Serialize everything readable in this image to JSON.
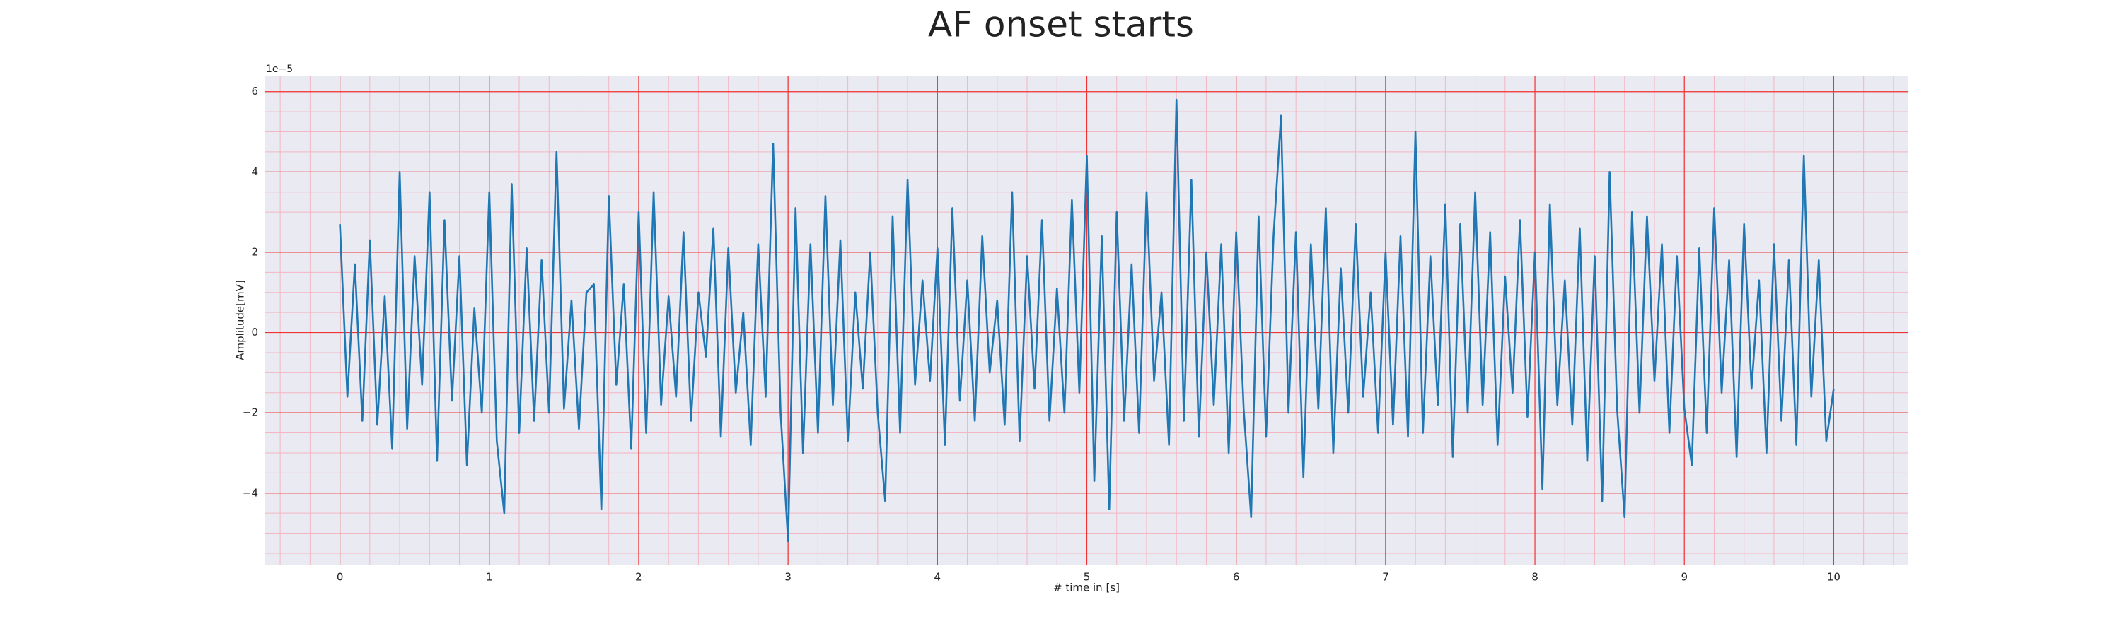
{
  "chart_data": {
    "type": "line",
    "title": "AF onset starts",
    "xlabel": "# time in [s]",
    "ylabel": "Amplitude[mV]",
    "y_offset_label": "1e−5",
    "xlim": [
      -0.5,
      10.5
    ],
    "ylim": [
      -5.8,
      6.4
    ],
    "xticks": [
      0,
      1,
      2,
      3,
      4,
      5,
      6,
      7,
      8,
      9,
      10
    ],
    "yticks": [
      {
        "value": -4,
        "label": "−4"
      },
      {
        "value": -2,
        "label": "−2"
      },
      0,
      2,
      4,
      6
    ],
    "grid": true,
    "minor_grid": true,
    "x": [
      0,
      0.05,
      0.1,
      0.15,
      0.2,
      0.25,
      0.3,
      0.35,
      0.4,
      0.45,
      0.5,
      0.55,
      0.6,
      0.65,
      0.7,
      0.75,
      0.8,
      0.85,
      0.9,
      0.95,
      1,
      1.05,
      1.1,
      1.15,
      1.2,
      1.25,
      1.3,
      1.35,
      1.4,
      1.45,
      1.5,
      1.55,
      1.6,
      1.65,
      1.7,
      1.75,
      1.8,
      1.85,
      1.9,
      1.95,
      2,
      2.05,
      2.1,
      2.15,
      2.2,
      2.25,
      2.3,
      2.35,
      2.4,
      2.45,
      2.5,
      2.55,
      2.6,
      2.65,
      2.7,
      2.75,
      2.8,
      2.85,
      2.9,
      2.95,
      3,
      3.05,
      3.1,
      3.15,
      3.2,
      3.25,
      3.3,
      3.35,
      3.4,
      3.45,
      3.5,
      3.55,
      3.6,
      3.65,
      3.7,
      3.75,
      3.8,
      3.85,
      3.9,
      3.95,
      4,
      4.05,
      4.1,
      4.15,
      4.2,
      4.25,
      4.3,
      4.35,
      4.4,
      4.45,
      4.5,
      4.55,
      4.6,
      4.65,
      4.7,
      4.75,
      4.8,
      4.85,
      4.9,
      4.95,
      5,
      5.05,
      5.1,
      5.15,
      5.2,
      5.25,
      5.3,
      5.35,
      5.4,
      5.45,
      5.5,
      5.55,
      5.6,
      5.65,
      5.7,
      5.75,
      5.8,
      5.85,
      5.9,
      5.95,
      6,
      6.05,
      6.1,
      6.15,
      6.2,
      6.25,
      6.3,
      6.35,
      6.4,
      6.45,
      6.5,
      6.55,
      6.6,
      6.65,
      6.7,
      6.75,
      6.8,
      6.85,
      6.9,
      6.95,
      7,
      7.05,
      7.1,
      7.15,
      7.2,
      7.25,
      7.3,
      7.35,
      7.4,
      7.45,
      7.5,
      7.55,
      7.6,
      7.65,
      7.7,
      7.75,
      7.8,
      7.85,
      7.9,
      7.95,
      8,
      8.05,
      8.1,
      8.15,
      8.2,
      8.25,
      8.3,
      8.35,
      8.4,
      8.45,
      8.5,
      8.55,
      8.6,
      8.65,
      8.7,
      8.75,
      8.8,
      8.85,
      8.9,
      8.95,
      9,
      9.05,
      9.1,
      9.15,
      9.2,
      9.25,
      9.3,
      9.35,
      9.4,
      9.45,
      9.5,
      9.55,
      9.6,
      9.65,
      9.7,
      9.75,
      9.8,
      9.85,
      9.9,
      9.95,
      10
    ],
    "series": [
      {
        "color": "#1f77b4",
        "values": [
          2.7,
          -1.6,
          1.7,
          -2.2,
          2.3,
          -2.3,
          0.9,
          -2.9,
          4.0,
          -2.4,
          1.9,
          -1.3,
          3.5,
          -3.2,
          2.8,
          -1.7,
          1.9,
          -3.3,
          0.6,
          -2.0,
          3.5,
          -2.7,
          -4.5,
          3.7,
          -2.5,
          2.1,
          -2.2,
          1.8,
          -2.0,
          4.5,
          -1.9,
          0.8,
          -2.4,
          1.0,
          1.2,
          -4.4,
          3.4,
          -1.3,
          1.2,
          -2.9,
          3.0,
          -2.5,
          3.5,
          -1.8,
          0.9,
          -1.6,
          2.5,
          -2.2,
          1.0,
          -0.6,
          2.6,
          -2.6,
          2.1,
          -1.5,
          0.5,
          -2.8,
          2.2,
          -1.6,
          4.7,
          -2.0,
          -5.2,
          3.1,
          -3.0,
          2.2,
          -2.5,
          3.4,
          -1.8,
          2.3,
          -2.7,
          1.0,
          -1.4,
          2.0,
          -2.0,
          -4.2,
          2.9,
          -2.5,
          3.8,
          -1.3,
          1.3,
          -1.2,
          2.1,
          -2.8,
          3.1,
          -1.7,
          1.3,
          -2.2,
          2.4,
          -1.0,
          0.8,
          -2.3,
          3.5,
          -2.7,
          1.9,
          -1.4,
          2.8,
          -2.2,
          1.1,
          -2.0,
          3.3,
          -1.5,
          4.4,
          -3.7,
          2.4,
          -4.4,
          3.0,
          -2.2,
          1.7,
          -2.5,
          3.5,
          -1.2,
          1.0,
          -2.8,
          5.8,
          -2.2,
          3.8,
          -2.6,
          2.0,
          -1.8,
          2.2,
          -3.0,
          2.5,
          -1.9,
          -4.6,
          2.9,
          -2.6,
          2.4,
          5.4,
          -2.0,
          2.5,
          -3.6,
          2.2,
          -1.9,
          3.1,
          -3.0,
          1.6,
          -2.0,
          2.7,
          -1.6,
          1.0,
          -2.5,
          2.0,
          -2.3,
          2.4,
          -2.6,
          5.0,
          -2.5,
          1.9,
          -1.8,
          3.2,
          -3.1,
          2.7,
          -2.0,
          3.5,
          -1.8,
          2.5,
          -2.8,
          1.4,
          -1.5,
          2.8,
          -2.1,
          2.0,
          -3.9,
          3.2,
          -1.8,
          1.3,
          -2.3,
          2.6,
          -3.2,
          1.9,
          -4.2,
          4.0,
          -1.9,
          -4.6,
          3.0,
          -2.0,
          2.9,
          -1.2,
          2.2,
          -2.5,
          1.9,
          -1.9,
          -3.3,
          2.1,
          -2.5,
          3.1,
          -1.5,
          1.8,
          -3.1,
          2.7,
          -1.4,
          1.3,
          -3.0,
          2.2,
          -2.2,
          1.8,
          -2.8,
          4.4,
          -1.6,
          1.8,
          -2.7,
          -1.4
        ]
      }
    ]
  }
}
